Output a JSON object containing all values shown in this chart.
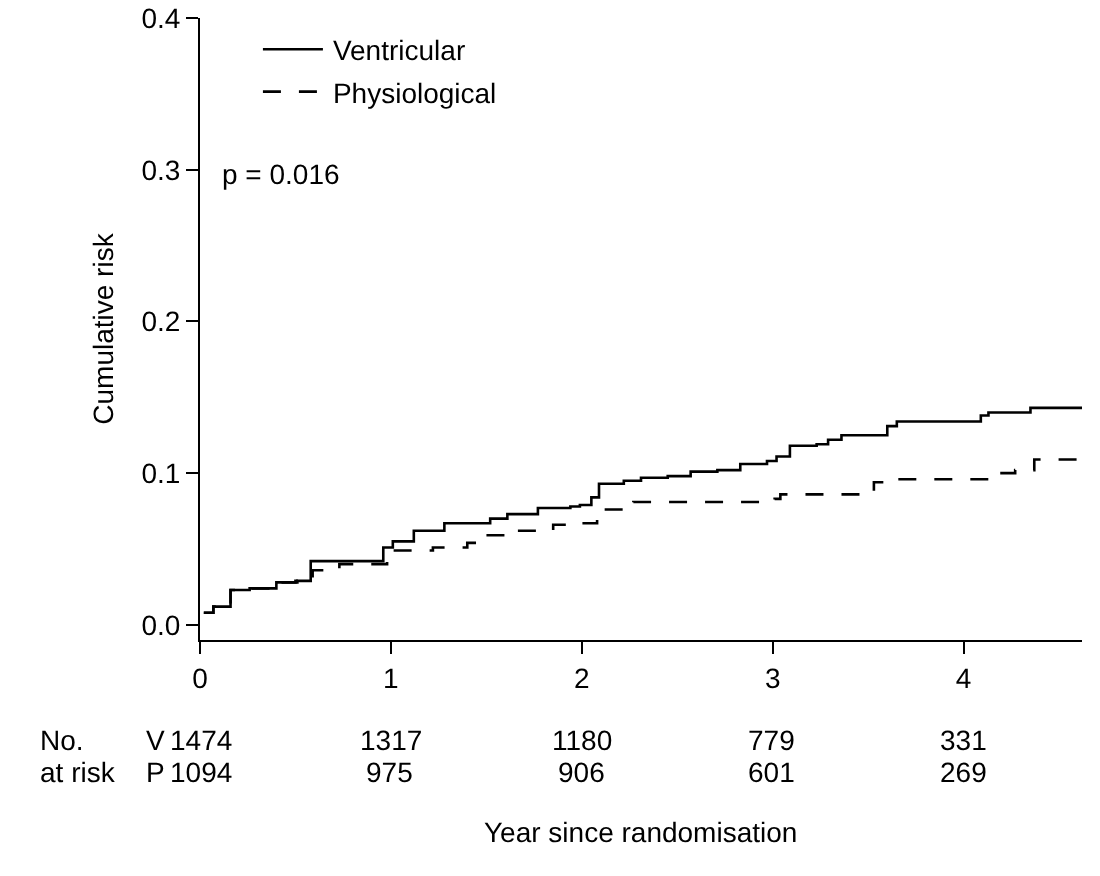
{
  "chart_data": {
    "type": "step",
    "xlabel": "Year since randomisation",
    "ylabel": "Cumulative risk",
    "xlim": [
      0,
      4.62
    ],
    "xticks": [
      0,
      1,
      2,
      3,
      4
    ],
    "ylim": [
      -0.01,
      0.4
    ],
    "yticks": [
      {
        "value": 0,
        "label": "0.0"
      },
      0.1,
      0.2,
      0.3,
      0.4
    ],
    "grid": false,
    "legend": "top left",
    "marker": "none",
    "series": [
      {
        "name": "Ventricular",
        "color": "#000000",
        "line_style": "solid",
        "x": [
          0.02,
          0.07,
          0.16,
          0.26,
          0.4,
          0.5,
          0.58,
          0.96,
          1.01,
          1.12,
          1.28,
          1.45,
          1.52,
          1.61,
          1.77,
          1.94,
          1.99,
          2.05,
          2.09,
          2.22,
          2.31,
          2.45,
          2.57,
          2.71,
          2.83,
          2.97,
          3.02,
          3.09,
          3.23,
          3.29,
          3.36,
          3.57,
          3.6,
          3.65,
          4.07,
          4.09,
          4.13,
          4.34,
          4.35,
          4.62
        ],
        "values": [
          0.008,
          0.012,
          0.023,
          0.024,
          0.028,
          0.029,
          0.042,
          0.051,
          0.055,
          0.062,
          0.067,
          0.067,
          0.07,
          0.073,
          0.077,
          0.078,
          0.079,
          0.084,
          0.093,
          0.095,
          0.097,
          0.098,
          0.101,
          0.102,
          0.106,
          0.108,
          0.111,
          0.118,
          0.119,
          0.122,
          0.125,
          0.125,
          0.131,
          0.134,
          0.134,
          0.138,
          0.14,
          0.14,
          0.143,
          0.143
        ]
      },
      {
        "name": "Physiological",
        "color": "#000000",
        "line_style": "dashed",
        "x": [
          0.02,
          0.07,
          0.16,
          0.26,
          0.4,
          0.51,
          0.59,
          0.73,
          0.98,
          1.01,
          1.22,
          1.4,
          1.5,
          1.63,
          1.85,
          2.01,
          2.08,
          2.27,
          3.01,
          3.04,
          3.46,
          3.53,
          3.64,
          4.09,
          4.14,
          4.27,
          4.37,
          4.62
        ],
        "values": [
          0.008,
          0.012,
          0.023,
          0.024,
          0.028,
          0.029,
          0.036,
          0.04,
          0.043,
          0.049,
          0.051,
          0.054,
          0.059,
          0.062,
          0.066,
          0.067,
          0.076,
          0.081,
          0.083,
          0.086,
          0.088,
          0.094,
          0.096,
          0.096,
          0.1,
          0.102,
          0.109,
          0.109
        ]
      }
    ],
    "annotations": [
      "p = 0.016",
      "No.",
      "at risk",
      "V",
      "P",
      "1474",
      "1317",
      "1180",
      "779",
      "331",
      "1094",
      "975",
      "906",
      "601",
      "269"
    ]
  }
}
